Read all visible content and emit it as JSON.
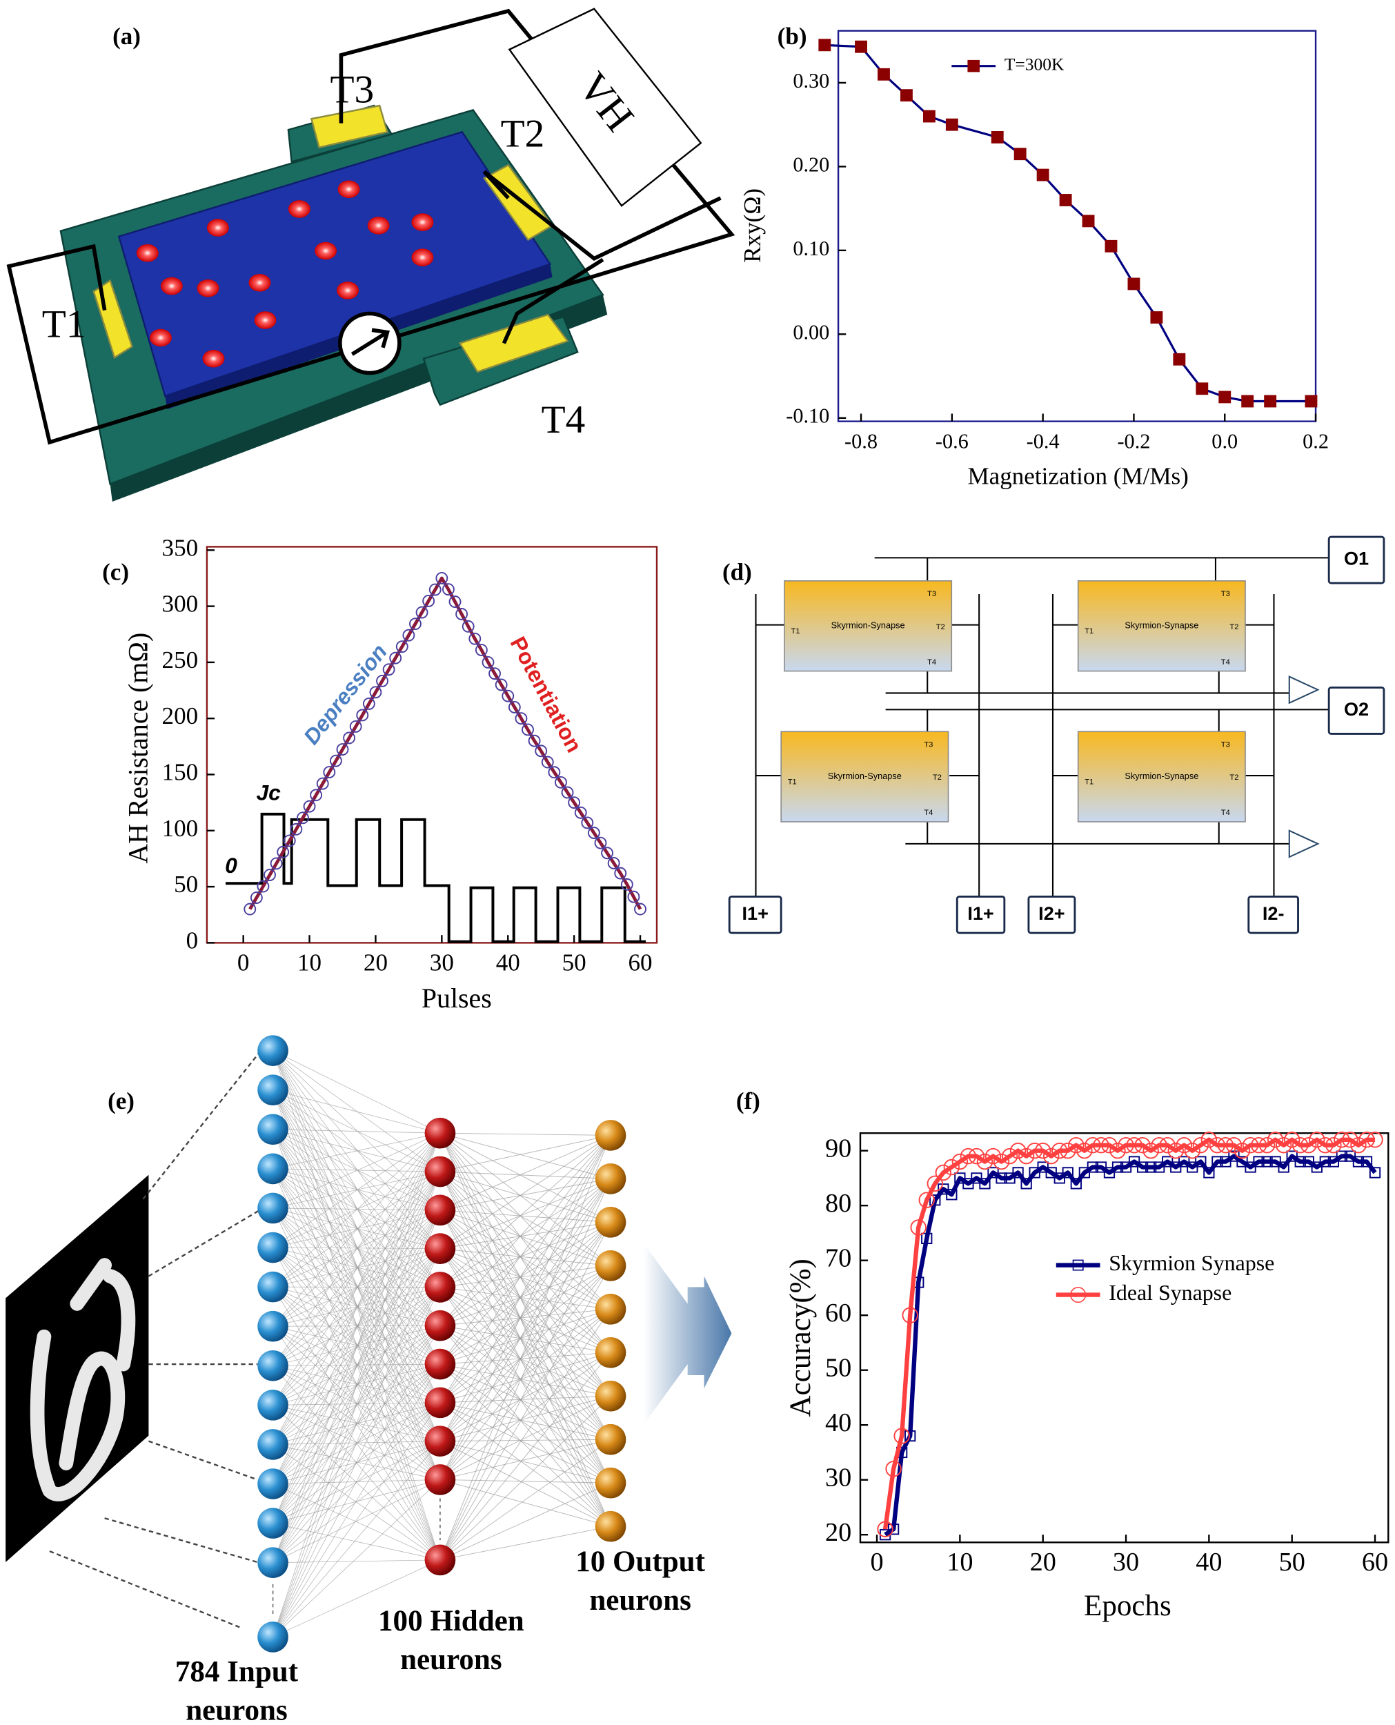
{
  "panel_labels": [
    "(a)",
    "(b)",
    "(c)",
    "(d)",
    "(e)",
    "(f)"
  ],
  "device": {
    "terminals": [
      "T1",
      "T2",
      "T3",
      "T4"
    ],
    "voltage": "VH"
  },
  "chart_data": [
    {
      "type": "line",
      "xlabel": "Magnetization (M/Ms)",
      "ylabel": "Rxy(Ω)",
      "frame_color": "#1a1a8c",
      "legend": "top-left",
      "xlim": [
        -0.85,
        0.2
      ],
      "ylim": [
        -0.104,
        0.362
      ],
      "xticks": [
        -0.8,
        -0.6,
        -0.4,
        -0.2,
        {
          "value": 0,
          "label": "0.0"
        },
        0.2
      ],
      "yticks": [
        {
          "value": -0.1,
          "label": "-0.10"
        },
        {
          "value": 0,
          "label": "0.00"
        },
        {
          "value": 0.1,
          "label": "0.10"
        },
        {
          "value": 0.2,
          "label": "0.20"
        },
        {
          "value": 0.3,
          "label": "0.30"
        }
      ],
      "x": [
        -0.88,
        -0.8,
        -0.75,
        -0.7,
        -0.65,
        -0.6,
        -0.5,
        -0.45,
        -0.4,
        -0.35,
        -0.3,
        -0.25,
        -0.2,
        -0.15,
        -0.1,
        -0.05,
        0.0,
        0.05,
        0.1,
        0.19
      ],
      "series": [
        {
          "name": "T=300K",
          "color": "#8b0000",
          "line_color": "#000080",
          "marker": "square",
          "values": [
            0.345,
            0.343,
            0.31,
            0.285,
            0.26,
            0.25,
            0.235,
            0.215,
            0.19,
            0.16,
            0.135,
            0.105,
            0.06,
            0.02,
            -0.03,
            -0.065,
            -0.075,
            -0.08,
            -0.08,
            -0.08
          ]
        }
      ]
    },
    {
      "type": "line",
      "xlabel": "Pulses",
      "ylabel": "AH Resistance (mΩ)",
      "frame_color": "#8b1a1a",
      "xlim": [
        -5.5,
        62.5
      ],
      "ylim": [
        0,
        353
      ],
      "xticks": [
        0,
        10,
        20,
        30,
        40,
        50,
        60
      ],
      "yticks": [
        0,
        50,
        100,
        150,
        200,
        250,
        300,
        350
      ],
      "annotations": [
        {
          "text": "Depression",
          "color": "#4a7fc1"
        },
        {
          "text": "Potentiation",
          "color": "#e02020"
        },
        {
          "text": "Jc",
          "color": "#000000"
        },
        {
          "text": "0",
          "color": "#000000"
        }
      ],
      "x": [
        1,
        2,
        3,
        4,
        5,
        6,
        7,
        8,
        9,
        10,
        11,
        12,
        13,
        14,
        15,
        16,
        17,
        18,
        19,
        20,
        21,
        22,
        23,
        24,
        25,
        26,
        27,
        28,
        29,
        30,
        31,
        32,
        33,
        34,
        35,
        36,
        37,
        38,
        39,
        40,
        41,
        42,
        43,
        44,
        45,
        46,
        47,
        48,
        49,
        50,
        51,
        52,
        53,
        54,
        55,
        56,
        57,
        58,
        59,
        60
      ],
      "series": [
        {
          "color": "#4a3fa0",
          "line_color": "#8b1a3a",
          "marker": "circle",
          "values": [
            30,
            40.2,
            50.3,
            60.5,
            70.7,
            80.9,
            91,
            101.2,
            111.4,
            121.6,
            131.7,
            141.9,
            152.1,
            162.2,
            172.4,
            182.6,
            192.8,
            202.9,
            213.1,
            223.3,
            233.4,
            243.6,
            253.8,
            264,
            274.1,
            284.3,
            294.5,
            304.7,
            314.8,
            325,
            315,
            304,
            293,
            282,
            271,
            261,
            250,
            240,
            230,
            220,
            210,
            200,
            190,
            180,
            171,
            161,
            152,
            143,
            134,
            125,
            116,
            107,
            98,
            89,
            80,
            71,
            62,
            52,
            41,
            30
          ]
        }
      ]
    },
    {
      "type": "line",
      "xlabel": "Epochs",
      "ylabel": "Accuracy(%)",
      "frame_color": "#000000",
      "legend": "center-right",
      "xlim": [
        -2,
        61.6
      ],
      "ylim": [
        18.6,
        93.2
      ],
      "xticks": [
        0,
        10,
        20,
        30,
        40,
        50,
        60
      ],
      "yticks": [
        20,
        30,
        40,
        50,
        60,
        70,
        80,
        90
      ],
      "x": [
        1,
        2,
        3,
        4,
        5,
        6,
        7,
        8,
        9,
        10,
        11,
        12,
        13,
        14,
        15,
        16,
        17,
        18,
        19,
        20,
        21,
        22,
        23,
        24,
        25,
        26,
        27,
        28,
        29,
        30,
        31,
        32,
        33,
        34,
        35,
        36,
        37,
        38,
        39,
        40,
        41,
        42,
        43,
        44,
        45,
        46,
        47,
        48,
        49,
        50,
        51,
        52,
        53,
        54,
        55,
        56,
        57,
        58,
        59,
        60
      ],
      "series": [
        {
          "name": "Skyrmion Synapse",
          "color": "#000080",
          "marker": "square",
          "values": [
            20,
            21,
            35,
            38,
            66,
            74,
            81,
            83,
            82,
            85,
            84,
            85,
            84,
            86,
            85,
            85,
            86,
            84,
            86,
            87,
            86,
            85,
            86,
            84,
            86,
            87,
            87,
            86,
            87,
            87,
            88,
            87,
            87,
            87,
            88,
            87,
            88,
            87,
            88,
            86,
            88,
            88,
            89,
            88,
            87,
            88,
            88,
            88,
            87,
            89,
            88,
            88,
            87,
            88,
            88,
            89,
            89,
            88,
            88,
            86
          ]
        },
        {
          "name": "Ideal Synapse",
          "color": "#ff4040",
          "marker": "circle",
          "values": [
            21,
            32,
            38,
            60,
            76,
            81,
            84,
            86,
            87,
            88,
            89,
            89,
            88,
            89,
            88,
            89,
            90,
            89,
            90,
            90,
            89,
            90,
            90,
            91,
            90,
            91,
            91,
            91,
            90,
            91,
            91,
            91,
            90,
            91,
            91,
            90,
            91,
            90,
            91,
            92,
            91,
            91,
            91,
            90,
            91,
            91,
            91,
            92,
            91,
            92,
            91,
            91,
            92,
            91,
            91,
            92,
            92,
            91,
            92,
            92
          ]
        }
      ]
    }
  ],
  "crossbar": {
    "outputs": [
      "O1",
      "O2"
    ],
    "inputs": [
      "I1+",
      "I1+",
      "I2+",
      "I2-"
    ],
    "synapses": [
      {
        "label": "Skyrmion-Synapse",
        "terminals": [
          "T1",
          "T2",
          "T3",
          "T4"
        ]
      },
      {
        "label": "Skyrmion-Synapse",
        "terminals": [
          "T1",
          "T2",
          "T3",
          "T4"
        ]
      },
      {
        "label": "Skyrmion-Synapse",
        "terminals": [
          "T1",
          "T2",
          "T3",
          "T4"
        ]
      },
      {
        "label": "Skyrmion-Synapse",
        "terminals": [
          "T1",
          "T2",
          "T3",
          "T4"
        ]
      }
    ]
  },
  "network": {
    "layers": [
      {
        "label_lines": [
          "784 Input",
          "neurons"
        ]
      },
      {
        "label_lines": [
          "100 Hidden",
          "neurons"
        ]
      },
      {
        "label_lines": [
          "10 Output",
          "neurons"
        ]
      }
    ]
  }
}
